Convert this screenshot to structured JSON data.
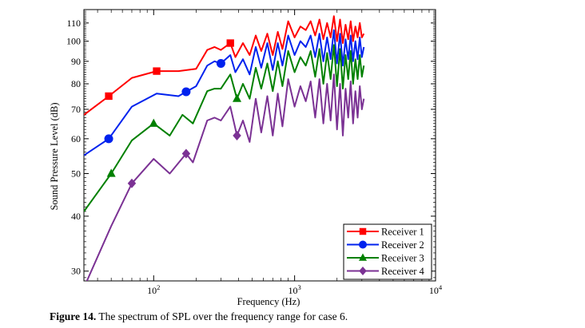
{
  "chart_data": {
    "type": "line",
    "title": "",
    "xlabel": "Frequency (Hz)",
    "ylabel": "Sound Pressure Level (dB)",
    "xscale": "log",
    "yscale": "log",
    "xlim": [
      32,
      10000
    ],
    "ylim": [
      28.5,
      118
    ],
    "grid": false,
    "legend_position": "bottom-right",
    "x_ticks": [
      {
        "value": 100,
        "label": "10",
        "exp": "2"
      },
      {
        "value": 1000,
        "label": "10",
        "exp": "3"
      },
      {
        "value": 10000,
        "label": "10",
        "exp": "4"
      }
    ],
    "y_ticks": [
      30,
      40,
      50,
      60,
      70,
      80,
      90,
      100,
      110
    ],
    "series": [
      {
        "name": "Receiver 1",
        "color": "#ff0000",
        "marker": "square",
        "marker_x": [
          48,
          105,
          350
        ],
        "x": [
          32,
          48,
          70,
          105,
          150,
          200,
          240,
          270,
          300,
          350,
          380,
          430,
          480,
          530,
          580,
          640,
          700,
          760,
          820,
          900,
          1000,
          1100,
          1200,
          1300,
          1400,
          1500,
          1600,
          1700,
          1800,
          1900,
          2000,
          2100,
          2200,
          2300,
          2400,
          2500,
          2600,
          2700,
          2800,
          2900,
          3000,
          3100
        ],
        "values": [
          68,
          75,
          82.5,
          85.5,
          85.5,
          86.5,
          95.5,
          97,
          95.5,
          99,
          92,
          99,
          93,
          103,
          95,
          104,
          93,
          105,
          96,
          111,
          102,
          108,
          106,
          111,
          103,
          112,
          101,
          110,
          102,
          114,
          100,
          112,
          99,
          109,
          101,
          111,
          100,
          108,
          102,
          110,
          102,
          104
        ]
      },
      {
        "name": "Receiver 2",
        "color": "#0022ee",
        "marker": "circle",
        "marker_x": [
          48,
          170,
          300
        ],
        "x": [
          32,
          48,
          70,
          105,
          150,
          200,
          240,
          270,
          300,
          350,
          380,
          430,
          480,
          530,
          580,
          640,
          700,
          760,
          820,
          900,
          1000,
          1100,
          1200,
          1300,
          1400,
          1500,
          1600,
          1700,
          1800,
          1900,
          2000,
          2100,
          2200,
          2300,
          2400,
          2500,
          2600,
          2700,
          2800,
          2900,
          3000,
          3100
        ],
        "values": [
          55,
          60,
          71,
          76,
          75,
          79,
          88,
          90,
          89,
          93,
          85,
          91,
          84,
          97,
          87,
          99,
          86,
          99,
          88,
          103,
          93,
          100,
          97,
          103,
          92,
          104,
          90,
          102,
          91,
          106,
          89,
          104,
          88,
          101,
          91,
          103,
          90,
          100,
          91,
          102,
          92,
          97
        ]
      },
      {
        "name": "Receiver 3",
        "color": "#008000",
        "marker": "triangle",
        "marker_x": [
          50,
          100,
          390
        ],
        "x": [
          32,
          50,
          70,
          100,
          130,
          160,
          190,
          240,
          270,
          300,
          350,
          390,
          430,
          480,
          530,
          580,
          640,
          700,
          760,
          820,
          900,
          1000,
          1100,
          1200,
          1300,
          1400,
          1500,
          1600,
          1700,
          1800,
          1900,
          2000,
          2100,
          2200,
          2300,
          2400,
          2500,
          2600,
          2700,
          2800,
          2900,
          3000,
          3100
        ],
        "values": [
          41,
          50,
          59.5,
          65,
          61,
          68,
          65,
          77,
          78,
          78,
          84,
          74,
          80,
          74,
          87,
          78,
          89,
          77,
          90,
          79,
          95,
          85,
          92,
          88,
          95,
          83,
          96,
          80,
          94,
          82,
          98,
          79,
          96,
          78,
          93,
          82,
          95,
          80,
          91,
          82,
          93,
          83,
          88
        ]
      },
      {
        "name": "Receiver 4",
        "color": "#7b3294",
        "marker": "diamond",
        "marker_x": [
          70,
          170,
          390
        ],
        "x": [
          32,
          50,
          70,
          100,
          130,
          170,
          190,
          240,
          270,
          300,
          350,
          390,
          430,
          480,
          530,
          580,
          640,
          700,
          760,
          820,
          900,
          1000,
          1100,
          1200,
          1300,
          1400,
          1500,
          1600,
          1700,
          1800,
          1900,
          2000,
          2100,
          2200,
          2300,
          2400,
          2500,
          2600,
          2700,
          2800,
          2900,
          3000,
          3100
        ],
        "values": [
          27.5,
          38,
          47.5,
          54,
          50,
          55.5,
          53,
          66,
          67,
          66,
          71,
          61,
          66,
          59,
          74,
          62,
          75,
          61,
          76,
          64,
          82,
          71,
          79,
          73,
          81,
          67,
          82,
          65,
          80,
          66,
          84,
          63,
          80,
          61,
          78,
          67,
          81,
          65,
          77,
          67,
          79,
          70,
          74
        ]
      }
    ]
  },
  "caption": {
    "label": "Figure 14.",
    "text": " The spectrum of SPL over the frequency range for case 6."
  }
}
